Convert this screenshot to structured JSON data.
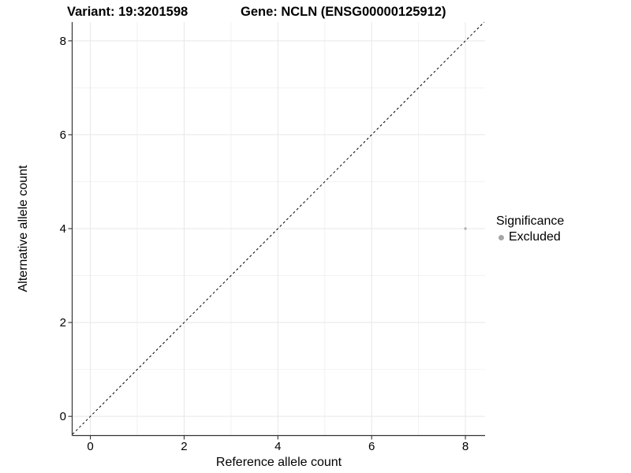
{
  "chart_data": {
    "type": "scatter",
    "title_left": "Variant: 19:3201598",
    "title_right": "Gene: NCLN (ENSG00000125912)",
    "xlabel": "Reference allele count",
    "ylabel": "Alternative allele count",
    "xlim": [
      -0.38,
      8.42
    ],
    "ylim": [
      -0.4,
      8.4
    ],
    "x_major_ticks": [
      0,
      2,
      4,
      6,
      8
    ],
    "y_major_ticks": [
      0,
      2,
      4,
      6,
      8
    ],
    "x_minor_ticks": [
      1,
      3,
      5,
      7
    ],
    "y_minor_ticks": [
      1,
      3,
      5,
      7
    ],
    "grid": true,
    "axis_lines": "left-bottom",
    "identity_line": {
      "style": "dashed",
      "slope": 1,
      "intercept": 0
    },
    "points": [
      {
        "x": 8,
        "y": 4,
        "series": "Excluded"
      }
    ],
    "legend": {
      "title": "Significance",
      "position": "right",
      "items": [
        {
          "label": "Excluded",
          "color": "#a6a6a6"
        }
      ]
    },
    "colors": {
      "point": "#b4b4b4",
      "legend_key": "#a6a6a6",
      "grid_major": "#e7e7e7",
      "grid_minor": "#f2f2f2",
      "axis_line": "#333333",
      "tick_mark": "#333333",
      "tick_label": "#000000",
      "identity_line": "#000000",
      "background": "#ffffff"
    }
  }
}
